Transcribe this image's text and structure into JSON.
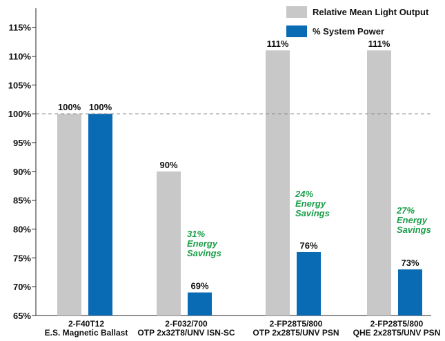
{
  "chart_data": {
    "type": "bar",
    "categories": [
      [
        "2-F40T12",
        "E.S. Magnetic Ballast"
      ],
      [
        "2-F032/700",
        "OTP 2x32T8/UNV ISN-SC"
      ],
      [
        "2-FP28T5/800",
        "OTP 2x28T5/UNV PSN"
      ],
      [
        "2-FP28T5/800",
        "QHE 2x28T5/UNV PSN"
      ]
    ],
    "series": [
      {
        "name": "Relative Mean Light Output",
        "values": [
          100,
          90,
          111,
          111
        ],
        "color": "#c8c8c8"
      },
      {
        "name": "% System Power",
        "values": [
          100,
          69,
          76,
          73
        ],
        "color": "#0a6bb5"
      }
    ],
    "data_labels": [
      [
        "100%",
        "90%",
        "111%",
        "111%"
      ],
      [
        "100%",
        "69%",
        "76%",
        "73%"
      ]
    ],
    "annotations": [
      {
        "category_index": 1,
        "lines": [
          "31%",
          "Energy",
          "Savings"
        ]
      },
      {
        "category_index": 2,
        "lines": [
          "24%",
          "Energy",
          "Savings"
        ]
      },
      {
        "category_index": 3,
        "lines": [
          "27%",
          "Energy",
          "Savings"
        ]
      }
    ],
    "annotation_color": "#1a9e48",
    "reference_line": 100,
    "ylim": [
      65,
      117
    ],
    "yticks": [
      65,
      70,
      75,
      80,
      85,
      90,
      95,
      100,
      105,
      110,
      115
    ],
    "ytick_labels": [
      "65%",
      "70%",
      "75%",
      "80%",
      "85%",
      "90%",
      "95%",
      "100%",
      "105%",
      "110%",
      "115%"
    ],
    "legend_position": "top-right",
    "grid": false
  }
}
